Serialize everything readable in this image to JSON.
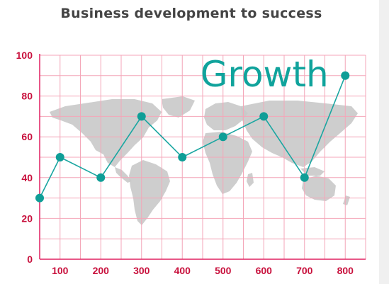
{
  "colors": {
    "grid": "#f4a6b8",
    "axis": "#e02060",
    "tick_text": "#c8103c",
    "line": "#1aa6a1",
    "marker": "#0f9e97",
    "map": "#c9c9c9",
    "annotation": "#10a39c"
  },
  "chart_data": {
    "type": "line",
    "title": "Business development to success",
    "xlabel": "",
    "ylabel": "",
    "x_ticks": [
      100,
      200,
      300,
      400,
      500,
      600,
      700,
      800
    ],
    "y_ticks": [
      0,
      20,
      40,
      60,
      80,
      100
    ],
    "xlim": [
      50,
      850
    ],
    "ylim": [
      0,
      100
    ],
    "grid": true,
    "legend": "none",
    "background": "world-map",
    "series": [
      {
        "x": [
          50,
          100,
          200,
          300,
          400,
          500,
          600,
          700,
          800
        ],
        "y": [
          30,
          50,
          40,
          70,
          50,
          60,
          70,
          40,
          90
        ]
      }
    ],
    "annotations": [
      {
        "text": "Growth",
        "x": 600,
        "y": 90
      }
    ]
  }
}
